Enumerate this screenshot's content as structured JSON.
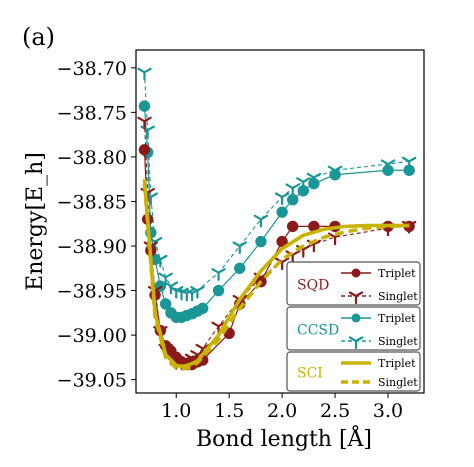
{
  "panel_label": "(a)",
  "colors": {
    "sqd": "#8b1a1a",
    "ccsd": "#1a9696",
    "sci": "#c8b400",
    "axis": "#000000",
    "legend_border": "#555555"
  },
  "chart_data": {
    "type": "line",
    "title": "",
    "xlabel": "Bond length [Å]",
    "ylabel": "Energy[E_h]",
    "xlim": [
      0.62,
      3.34
    ],
    "ylim": [
      -39.065,
      -38.68
    ],
    "xticks": [
      1.0,
      1.5,
      2.0,
      2.5,
      3.0
    ],
    "xtick_labels": [
      "1.0",
      "1.5",
      "2.0",
      "2.5",
      "3.0"
    ],
    "yticks": [
      -38.7,
      -38.75,
      -38.8,
      -38.85,
      -38.9,
      -38.95,
      -39.0,
      -39.05
    ],
    "ytick_labels": [
      "−38.70",
      "−38.75",
      "−38.80",
      "−38.85",
      "−38.90",
      "−38.95",
      "−39.00",
      "−39.05"
    ],
    "grid": false,
    "legend_placement": "bottom-right",
    "legend": {
      "groups": [
        {
          "method": "SQD",
          "color_key": "sqd",
          "entries": [
            {
              "label": "Triplet",
              "style": "solid-circle"
            },
            {
              "label": "Singlet",
              "style": "dashed-tri"
            }
          ]
        },
        {
          "method": "CCSD",
          "color_key": "ccsd",
          "entries": [
            {
              "label": "Triplet",
              "style": "solid-circle"
            },
            {
              "label": "Singlet",
              "style": "dashed-tri"
            }
          ]
        },
        {
          "method": "SCI",
          "color_key": "sci",
          "entries": [
            {
              "label": "Triplet",
              "style": "solid-thick"
            },
            {
              "label": "Singlet",
              "style": "dashed-thick"
            }
          ]
        }
      ]
    },
    "series": [
      {
        "method": "CCSD",
        "state": "Singlet",
        "color_key": "ccsd",
        "line": "dashed",
        "marker": "tri",
        "x": [
          0.7,
          0.73,
          0.76,
          0.8,
          0.85,
          0.9,
          0.95,
          1.0,
          1.05,
          1.1,
          1.15,
          1.2,
          1.4,
          1.6,
          1.8,
          2.0,
          2.1,
          2.2,
          2.3,
          2.5,
          3.0,
          3.2
        ],
        "y": [
          -38.705,
          -38.77,
          -38.845,
          -38.895,
          -38.915,
          -38.935,
          -38.945,
          -38.95,
          -38.952,
          -38.953,
          -38.953,
          -38.95,
          -38.93,
          -38.9,
          -38.87,
          -38.845,
          -38.835,
          -38.828,
          -38.823,
          -38.815,
          -38.808,
          -38.805
        ]
      },
      {
        "method": "CCSD",
        "state": "Triplet",
        "color_key": "ccsd",
        "line": "solid",
        "marker": "circle",
        "x": [
          0.7,
          0.73,
          0.76,
          0.8,
          0.85,
          0.9,
          0.95,
          1.0,
          1.05,
          1.1,
          1.15,
          1.2,
          1.25,
          1.4,
          1.6,
          1.8,
          2.0,
          2.1,
          2.2,
          2.3,
          2.5,
          3.0,
          3.2
        ],
        "y": [
          -38.743,
          -38.795,
          -38.885,
          -38.915,
          -38.945,
          -38.965,
          -38.975,
          -38.98,
          -38.98,
          -38.978,
          -38.976,
          -38.973,
          -38.97,
          -38.95,
          -38.925,
          -38.895,
          -38.862,
          -38.848,
          -38.838,
          -38.83,
          -38.82,
          -38.815,
          -38.815
        ]
      },
      {
        "method": "SQD",
        "state": "Singlet",
        "color_key": "sqd",
        "line": "dashed",
        "marker": "tri",
        "x": [
          0.7,
          0.73,
          0.76,
          0.8,
          0.85,
          0.9,
          0.95,
          1.0,
          1.05,
          1.1,
          1.15,
          1.2,
          1.25,
          1.4,
          1.6,
          1.8,
          2.0,
          2.1,
          2.2,
          2.3,
          2.5,
          3.0,
          3.2
        ],
        "y": [
          -38.76,
          -38.84,
          -38.9,
          -38.95,
          -38.995,
          -39.015,
          -39.025,
          -39.03,
          -39.03,
          -39.028,
          -39.026,
          -39.022,
          -39.015,
          -38.99,
          -38.96,
          -38.935,
          -38.918,
          -38.91,
          -38.904,
          -38.898,
          -38.89,
          -38.88,
          -38.877
        ]
      },
      {
        "method": "SQD",
        "state": "Triplet",
        "color_key": "sqd",
        "line": "solid",
        "marker": "circle",
        "x": [
          0.7,
          0.73,
          0.76,
          0.8,
          0.85,
          0.9,
          0.95,
          1.0,
          1.05,
          1.1,
          1.15,
          1.2,
          1.25,
          1.5,
          1.6,
          1.8,
          2.0,
          2.1,
          2.3,
          2.5,
          3.0,
          3.2
        ],
        "y": [
          -38.792,
          -38.87,
          -38.905,
          -38.955,
          -38.995,
          -39.012,
          -39.018,
          -39.025,
          -39.03,
          -39.033,
          -39.033,
          -39.03,
          -39.028,
          -38.998,
          -38.965,
          -38.94,
          -38.895,
          -38.878,
          -38.878,
          -38.878,
          -38.878,
          -38.878
        ]
      },
      {
        "method": "SCI",
        "state": "Singlet",
        "color_key": "sci",
        "line": "dashed-thick",
        "marker": "none",
        "x": [
          0.7,
          0.8,
          0.9,
          1.0,
          1.05,
          1.1,
          1.15,
          1.2,
          1.4,
          1.6,
          1.8,
          2.0,
          2.2,
          2.4,
          2.6,
          2.8,
          3.0,
          3.2
        ],
        "y": [
          -38.83,
          -38.98,
          -39.025,
          -39.037,
          -39.038,
          -39.037,
          -39.035,
          -39.031,
          -39.005,
          -38.97,
          -38.94,
          -38.915,
          -38.9,
          -38.89,
          -38.884,
          -38.88,
          -38.878,
          -38.877
        ]
      },
      {
        "method": "SCI",
        "state": "Triplet",
        "color_key": "sci",
        "line": "solid-thick",
        "marker": "none",
        "x": [
          0.7,
          0.8,
          0.9,
          1.0,
          1.05,
          1.1,
          1.15,
          1.2,
          1.4,
          1.6,
          1.8,
          2.0,
          2.2,
          2.4,
          2.6,
          2.8,
          3.0,
          3.2
        ],
        "y": [
          -38.825,
          -38.975,
          -39.022,
          -39.034,
          -39.035,
          -39.034,
          -39.032,
          -39.029,
          -39.0,
          -38.96,
          -38.928,
          -38.903,
          -38.888,
          -38.881,
          -38.878,
          -38.877,
          -38.877,
          -38.877
        ]
      }
    ]
  }
}
